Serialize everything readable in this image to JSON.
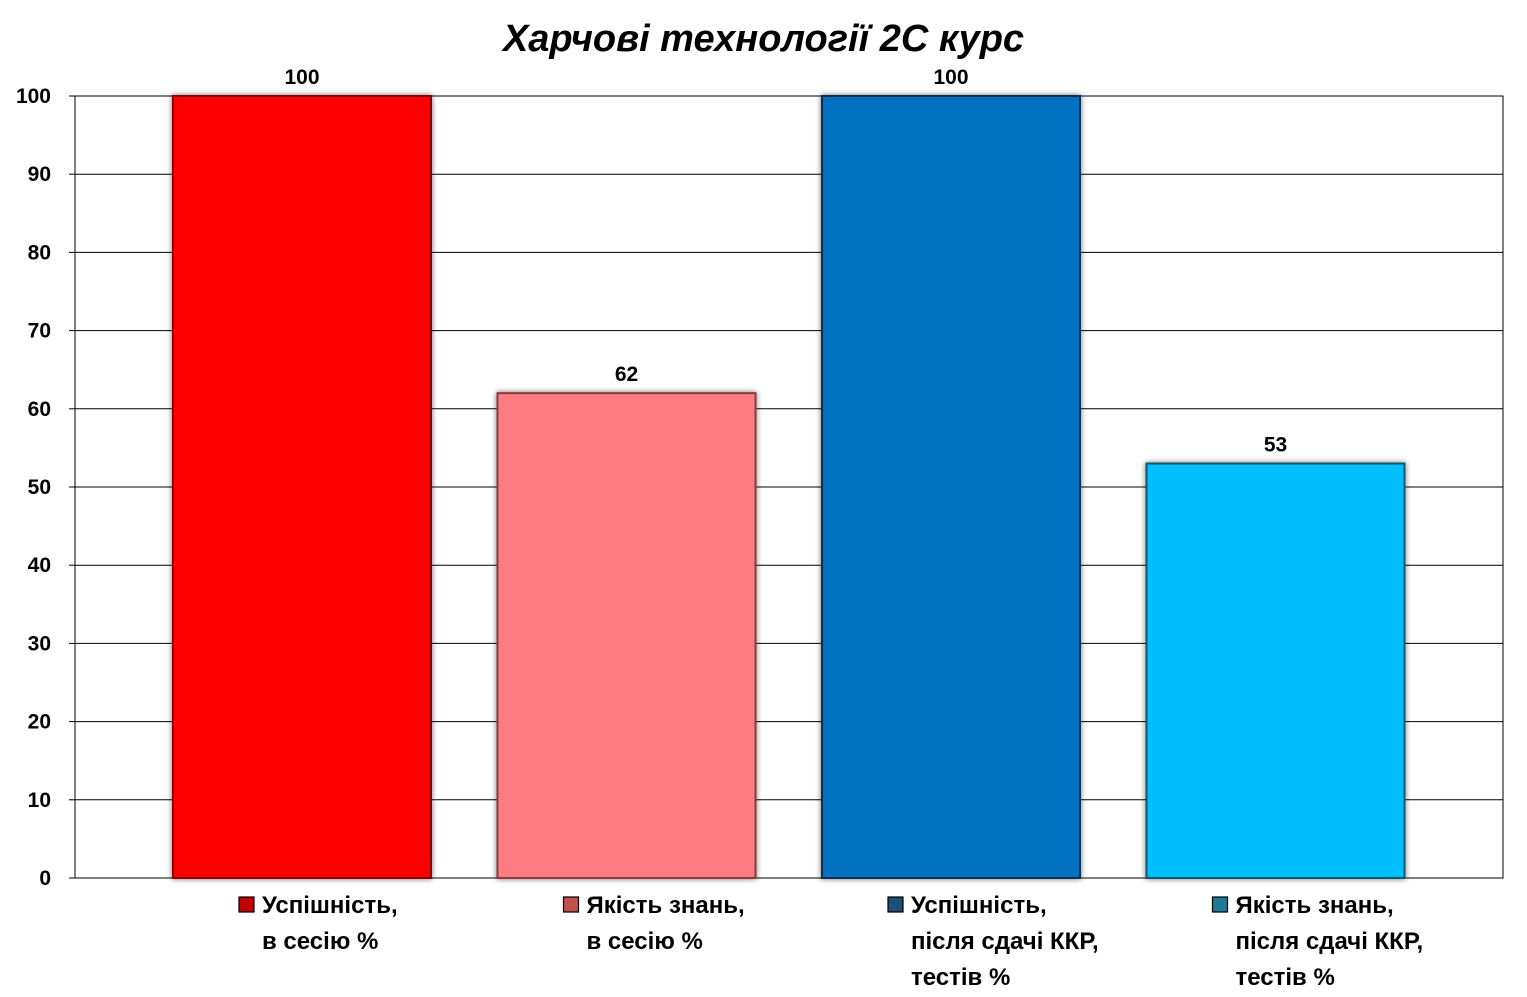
{
  "chart_data": {
    "type": "bar",
    "title": "Харчові технології 2С курс",
    "xlabel": "",
    "ylabel": "",
    "ylim": [
      0,
      100
    ],
    "yticks": [
      0,
      10,
      20,
      30,
      40,
      50,
      60,
      70,
      80,
      90,
      100
    ],
    "grid": true,
    "legend_placement": "bottom",
    "series": [
      {
        "name": "Успішність, в сесію %",
        "legend_lines": [
          "Успішність,",
          "в сесію %"
        ],
        "value": 100,
        "value_label": "100",
        "color": "#FF0000",
        "border_color": "#8B0000",
        "legend_color": "#C00000"
      },
      {
        "name": "Якість знань, в сесію %",
        "legend_lines": [
          "Якість знань,",
          "в сесію %"
        ],
        "value": 62,
        "value_label": "62",
        "color": "#FF7C80",
        "border_color": "#8C3A3C",
        "legend_color": "#C0504D"
      },
      {
        "name": "Успішність, після сдачі ККР, тестів %",
        "legend_lines": [
          "Успішність,",
          "після сдачі ККР,",
          "тестів %"
        ],
        "value": 100,
        "value_label": "100",
        "color": "#0070C0",
        "border_color": "#0B2E52",
        "legend_color": "#1F4E79"
      },
      {
        "name": "Якість знань, після сдачі ККР, тестів %",
        "legend_lines": [
          "Якість знань,",
          "після сдачі ККР,",
          "тестів %"
        ],
        "value": 53,
        "value_label": "53",
        "color": "#00BFFF",
        "border_color": "#0C5A6E",
        "legend_color": "#1F7A96"
      }
    ]
  }
}
